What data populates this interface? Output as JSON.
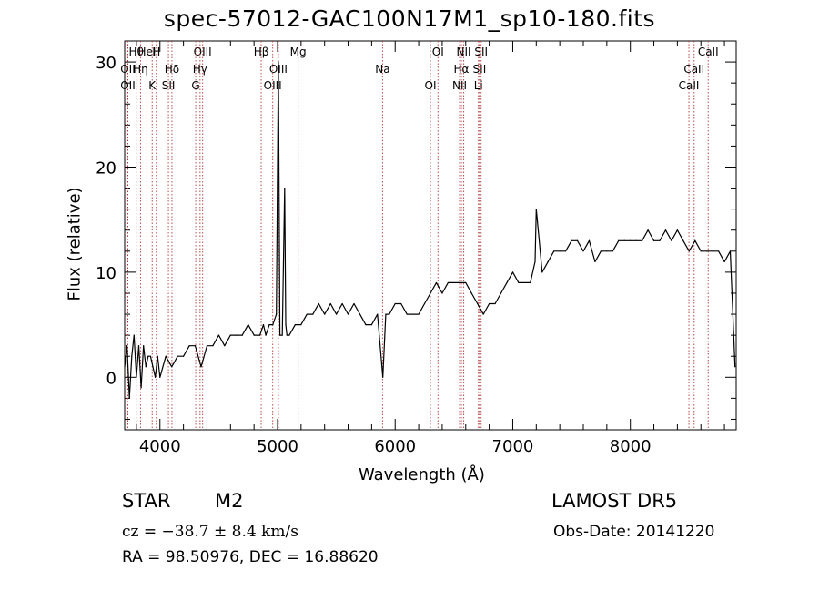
{
  "header": {
    "title": "spec-57012-GAC100N17M1_sp10-180.fits"
  },
  "footer": {
    "object_class": "STAR",
    "subclass": "M2",
    "survey": "LAMOST  DR5",
    "redshift": "cz = −38.7 ± 8.4 km/s",
    "obs_date": "Obs-Date: 20141220",
    "ra_dec": "RA =  98.50976, DEC =  16.88620"
  },
  "colors": {
    "line": "#000000",
    "background": "#ffffff"
  },
  "chart_data": {
    "type": "line",
    "title": "spec-57012-GAC100N17M1_sp10-180.fits",
    "xlabel": "Wavelength (Å)",
    "ylabel": "Flux (relative)",
    "xlim": [
      3700,
      8900
    ],
    "ylim": [
      -5,
      32
    ],
    "xticks": [
      4000,
      5000,
      6000,
      7000,
      8000
    ],
    "yticks": [
      0,
      10,
      20,
      30
    ],
    "grid": false,
    "series": [
      {
        "x": [
          3700,
          3720,
          3740,
          3760,
          3780,
          3800,
          3820,
          3840,
          3860,
          3880,
          3900,
          3920,
          3940,
          3960,
          3980,
          4000,
          4050,
          4100,
          4150,
          4200,
          4250,
          4300,
          4350,
          4400,
          4450,
          4500,
          4550,
          4600,
          4650,
          4700,
          4750,
          4800,
          4850,
          4880,
          4900,
          4930,
          4960,
          4990,
          5007,
          5020,
          5040,
          5060,
          5070,
          5080,
          5100,
          5150,
          5200,
          5250,
          5300,
          5350,
          5400,
          5450,
          5500,
          5550,
          5600,
          5650,
          5700,
          5750,
          5800,
          5850,
          5895,
          5920,
          5950,
          6000,
          6050,
          6100,
          6150,
          6200,
          6250,
          6300,
          6350,
          6400,
          6450,
          6500,
          6550,
          6600,
          6650,
          6700,
          6750,
          6800,
          6850,
          6900,
          6950,
          7000,
          7050,
          7100,
          7150,
          7190,
          7200,
          7250,
          7300,
          7350,
          7400,
          7450,
          7500,
          7550,
          7600,
          7650,
          7700,
          7750,
          7800,
          7850,
          7900,
          7950,
          8000,
          8050,
          8100,
          8150,
          8200,
          8250,
          8300,
          8350,
          8400,
          8450,
          8500,
          8550,
          8600,
          8650,
          8700,
          8750,
          8800,
          8850,
          8890
        ],
        "y": [
          1,
          3,
          -2,
          2,
          4,
          0,
          3,
          -1,
          3,
          1,
          2,
          2,
          1,
          0,
          2,
          0,
          2,
          1,
          2,
          2,
          3,
          3,
          1,
          3,
          3,
          4,
          3,
          4,
          4,
          4,
          5,
          4,
          4,
          5,
          4,
          5,
          5,
          6,
          30,
          4,
          4,
          18,
          5,
          4,
          4,
          5,
          5,
          6,
          6,
          7,
          6,
          7,
          6,
          7,
          6,
          7,
          6,
          5,
          5,
          6,
          0,
          6,
          6,
          7,
          7,
          6,
          6,
          6,
          7,
          8,
          9,
          8,
          9,
          9,
          9,
          9,
          8,
          7,
          6,
          7,
          7,
          8,
          9,
          10,
          9,
          9,
          9,
          11,
          16,
          10,
          11,
          12,
          12,
          12,
          13,
          13,
          12,
          13,
          11,
          12,
          12,
          12,
          13,
          13,
          13,
          13,
          13,
          14,
          13,
          13,
          14,
          13,
          14,
          13,
          12,
          13,
          12,
          12,
          12,
          12,
          11,
          12,
          1
        ],
        "color": "#000000"
      }
    ],
    "line_markers": [
      {
        "label": "Hθ",
        "wl": 3798
      },
      {
        "label": "OII",
        "wl": 3727
      },
      {
        "label": "OII",
        "wl": 3727
      },
      {
        "label": "HeI",
        "wl": 3889
      },
      {
        "label": "Hη",
        "wl": 3835
      },
      {
        "label": "K",
        "wl": 3934
      },
      {
        "label": "H",
        "wl": 3969
      },
      {
        "label": "Hδ",
        "wl": 4102
      },
      {
        "label": "SII",
        "wl": 4072
      },
      {
        "label": "OIII",
        "wl": 4363
      },
      {
        "label": "Hγ",
        "wl": 4341
      },
      {
        "label": "G",
        "wl": 4304
      },
      {
        "label": "Hβ",
        "wl": 4861
      },
      {
        "label": "OIII",
        "wl": 5007
      },
      {
        "label": "OIII",
        "wl": 4959
      },
      {
        "label": "Mg",
        "wl": 5175
      },
      {
        "label": "Na",
        "wl": 5893
      },
      {
        "label": "OI",
        "wl": 6300
      },
      {
        "label": "OI",
        "wl": 6364
      },
      {
        "label": "Hα",
        "wl": 6563
      },
      {
        "label": "NII",
        "wl": 6548
      },
      {
        "label": "NII",
        "wl": 6583
      },
      {
        "label": "SII",
        "wl": 6717
      },
      {
        "label": "Li",
        "wl": 6708
      },
      {
        "label": "SII",
        "wl": 6731
      },
      {
        "label": "CaII",
        "wl": 8542
      },
      {
        "label": "CaII",
        "wl": 8498
      },
      {
        "label": "CaII",
        "wl": 8662
      }
    ]
  }
}
